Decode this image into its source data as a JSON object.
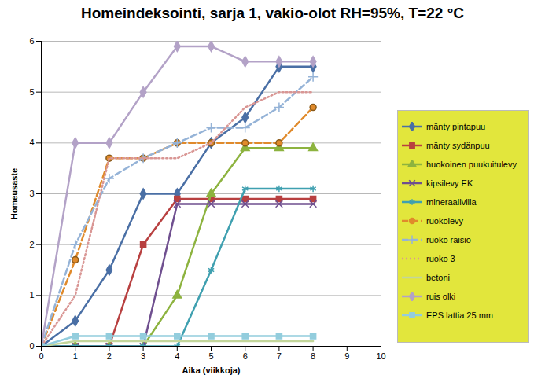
{
  "chart_data": {
    "type": "line",
    "title": "Homeindeksointi, sarja 1, vakio-olot RH=95%, T=22 °C",
    "x_label": "Aika (viikkoja)",
    "y_label": "Homeusaste",
    "x": [
      0,
      1,
      2,
      3,
      4,
      5,
      6,
      7,
      8
    ],
    "xlim": [
      0,
      10
    ],
    "xticks": [
      0,
      1,
      2,
      3,
      4,
      5,
      6,
      7,
      8,
      9,
      10
    ],
    "ylim": [
      0,
      6
    ],
    "yticks": [
      0,
      1,
      2,
      3,
      4,
      5,
      6
    ],
    "grid": true,
    "legend": "right",
    "series": [
      {
        "name": "mänty pintapuu",
        "color": "#4a6fa5",
        "marker": "diamond",
        "line_style": "solid",
        "values": [
          0,
          0.5,
          1.5,
          3,
          3,
          4,
          4.5,
          5.5,
          5.5
        ]
      },
      {
        "name": "mänty sydänpuu",
        "color": "#b84040",
        "marker": "square",
        "line_style": "solid",
        "values": [
          0,
          0,
          0,
          2,
          2.9,
          2.9,
          2.9,
          2.9,
          2.9
        ]
      },
      {
        "name": "huokoinen puukuitulevy",
        "color": "#8db33f",
        "marker": "triangle",
        "line_style": "solid",
        "values": [
          0,
          0,
          0,
          0,
          1,
          3,
          3.9,
          3.9,
          3.9
        ]
      },
      {
        "name": "kipsilevy EK",
        "color": "#6f4f8f",
        "marker": "times",
        "line_style": "solid",
        "values": [
          0,
          0,
          0,
          0,
          2.8,
          2.8,
          2.8,
          2.8,
          2.8
        ]
      },
      {
        "name": "mineraalivilla",
        "color": "#3fa0b0",
        "marker": "asterisk",
        "line_style": "solid",
        "values": [
          0,
          0,
          0,
          0,
          0,
          1.5,
          3.1,
          3.1,
          3.1
        ]
      },
      {
        "name": "ruokolevy",
        "color": "#e08a2b",
        "marker": "circle",
        "line_style": "dashed",
        "values": [
          0,
          1.7,
          3.7,
          3.7,
          4,
          4,
          4,
          4,
          4.7
        ]
      },
      {
        "name": "ruoko raisio",
        "color": "#95b3d7",
        "marker": "plus",
        "line_style": "dashed",
        "values": [
          0,
          2,
          3.3,
          3.7,
          4,
          4.3,
          4.3,
          4.7,
          5.3
        ]
      },
      {
        "name": "ruoko 3",
        "color": "#d99694",
        "marker": "none",
        "line_style": "dotted",
        "values": [
          0,
          1,
          3.7,
          3.7,
          3.7,
          4,
          4.7,
          5,
          5
        ]
      },
      {
        "name": "betoni",
        "color": "#c3d69b",
        "marker": "none",
        "line_style": "solid",
        "values": [
          0,
          0.1,
          0.1,
          0.1,
          0.1,
          0.1,
          0.1,
          0.1,
          0.1
        ]
      },
      {
        "name": "ruis olki",
        "color": "#b3a2c7",
        "marker": "diamond",
        "line_style": "solid",
        "values": [
          0,
          4,
          4,
          5,
          5.9,
          5.9,
          5.6,
          5.6,
          5.6
        ]
      },
      {
        "name": "EPS lattia 25 mm",
        "color": "#93cddd",
        "marker": "square",
        "line_style": "solid",
        "values": [
          0,
          0.2,
          0.2,
          0.2,
          0.2,
          0.2,
          0.2,
          0.2,
          0.2
        ]
      }
    ]
  }
}
